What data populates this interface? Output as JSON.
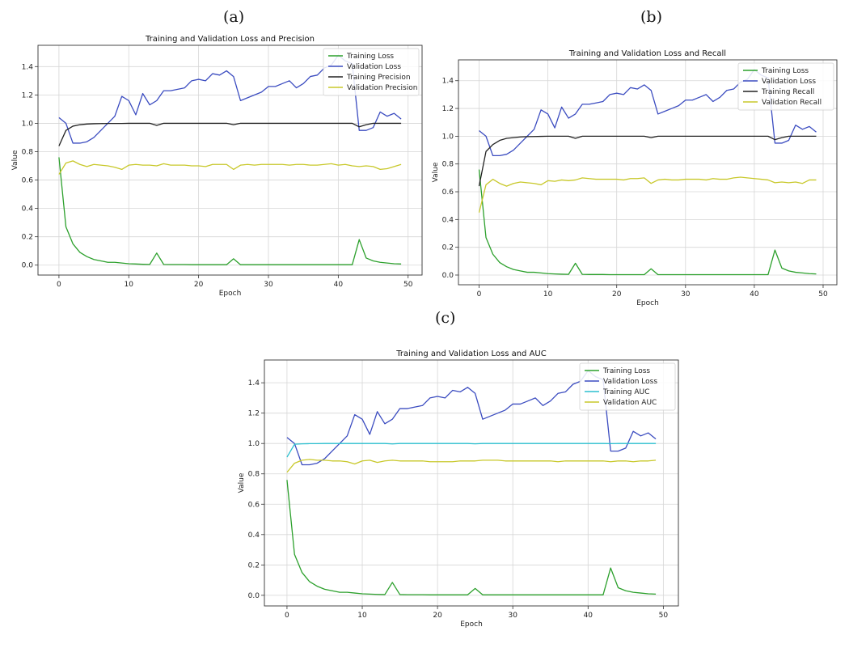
{
  "panels": [
    {
      "label": "(a)"
    },
    {
      "label": "(b)"
    },
    {
      "label": "(c)"
    }
  ],
  "chart_data": [
    {
      "type": "line",
      "title": "Training and Validation Loss and Precision",
      "xlabel": "Epoch",
      "ylabel": "Value",
      "xlim": [
        -3,
        52
      ],
      "ylim": [
        -0.07,
        1.55
      ],
      "xticks": [
        0,
        10,
        20,
        30,
        40,
        50
      ],
      "yticks": [
        0.0,
        0.2,
        0.4,
        0.6,
        0.8,
        1.0,
        1.2,
        1.4
      ],
      "grid": true,
      "legend": "top-right",
      "series": [
        {
          "name": "Training Loss",
          "color": "#2ca02c",
          "values": [
            0.76,
            0.27,
            0.15,
            0.09,
            0.06,
            0.04,
            0.03,
            0.02,
            0.02,
            0.015,
            0.01,
            0.008,
            0.006,
            0.005,
            0.085,
            0.005,
            0.004,
            0.004,
            0.004,
            0.003,
            0.003,
            0.003,
            0.003,
            0.003,
            0.003,
            0.045,
            0.003,
            0.003,
            0.003,
            0.003,
            0.003,
            0.003,
            0.003,
            0.003,
            0.003,
            0.003,
            0.003,
            0.003,
            0.003,
            0.003,
            0.003,
            0.003,
            0.003,
            0.18,
            0.05,
            0.03,
            0.02,
            0.015,
            0.01,
            0.008
          ]
        },
        {
          "name": "Validation Loss",
          "color": "#3b4cc0",
          "values": [
            1.04,
            1.0,
            0.86,
            0.86,
            0.87,
            0.9,
            0.95,
            1.0,
            1.05,
            1.19,
            1.16,
            1.06,
            1.21,
            1.13,
            1.16,
            1.23,
            1.23,
            1.24,
            1.25,
            1.3,
            1.31,
            1.3,
            1.35,
            1.34,
            1.37,
            1.33,
            1.16,
            1.18,
            1.2,
            1.22,
            1.26,
            1.26,
            1.28,
            1.3,
            1.25,
            1.28,
            1.33,
            1.34,
            1.39,
            1.41,
            1.48,
            1.44,
            1.42,
            0.95,
            0.95,
            0.97,
            1.08,
            1.05,
            1.07,
            1.03
          ]
        },
        {
          "name": "Training Precision",
          "color": "#222222",
          "values": [
            0.84,
            0.95,
            0.98,
            0.99,
            0.995,
            0.997,
            0.998,
            0.999,
            0.999,
            0.999,
            1.0,
            1.0,
            1.0,
            1.0,
            0.985,
            1.0,
            1.0,
            1.0,
            1.0,
            1.0,
            1.0,
            1.0,
            1.0,
            1.0,
            1.0,
            0.99,
            1.0,
            1.0,
            1.0,
            1.0,
            1.0,
            1.0,
            1.0,
            1.0,
            1.0,
            1.0,
            1.0,
            1.0,
            1.0,
            1.0,
            1.0,
            1.0,
            1.0,
            0.975,
            0.99,
            1.0,
            1.0,
            1.0,
            1.0,
            1.0
          ]
        },
        {
          "name": "Validation Precision",
          "color": "#c8c82a",
          "values": [
            0.64,
            0.72,
            0.735,
            0.71,
            0.695,
            0.71,
            0.705,
            0.7,
            0.69,
            0.675,
            0.705,
            0.71,
            0.705,
            0.705,
            0.7,
            0.715,
            0.705,
            0.705,
            0.705,
            0.7,
            0.7,
            0.695,
            0.71,
            0.71,
            0.71,
            0.675,
            0.705,
            0.71,
            0.705,
            0.71,
            0.71,
            0.71,
            0.71,
            0.705,
            0.71,
            0.71,
            0.705,
            0.705,
            0.71,
            0.715,
            0.705,
            0.71,
            0.7,
            0.695,
            0.7,
            0.695,
            0.675,
            0.68,
            0.695,
            0.71
          ]
        }
      ]
    },
    {
      "type": "line",
      "title": "Training and Validation Loss and Recall",
      "xlabel": "Epoch",
      "ylabel": "Value",
      "xlim": [
        -3,
        52
      ],
      "ylim": [
        -0.07,
        1.55
      ],
      "xticks": [
        0,
        10,
        20,
        30,
        40,
        50
      ],
      "yticks": [
        0.0,
        0.2,
        0.4,
        0.6,
        0.8,
        1.0,
        1.2,
        1.4
      ],
      "grid": true,
      "legend": "top-right",
      "series": [
        {
          "name": "Training Loss",
          "color": "#2ca02c",
          "values": [
            0.76,
            0.27,
            0.15,
            0.09,
            0.06,
            0.04,
            0.03,
            0.02,
            0.02,
            0.015,
            0.01,
            0.008,
            0.006,
            0.005,
            0.085,
            0.005,
            0.004,
            0.004,
            0.004,
            0.003,
            0.003,
            0.003,
            0.003,
            0.003,
            0.003,
            0.045,
            0.003,
            0.003,
            0.003,
            0.003,
            0.003,
            0.003,
            0.003,
            0.003,
            0.003,
            0.003,
            0.003,
            0.003,
            0.003,
            0.003,
            0.003,
            0.003,
            0.003,
            0.18,
            0.05,
            0.03,
            0.02,
            0.015,
            0.01,
            0.008
          ]
        },
        {
          "name": "Validation Loss",
          "color": "#3b4cc0",
          "values": [
            1.04,
            1.0,
            0.86,
            0.86,
            0.87,
            0.9,
            0.95,
            1.0,
            1.05,
            1.19,
            1.16,
            1.06,
            1.21,
            1.13,
            1.16,
            1.23,
            1.23,
            1.24,
            1.25,
            1.3,
            1.31,
            1.3,
            1.35,
            1.34,
            1.37,
            1.33,
            1.16,
            1.18,
            1.2,
            1.22,
            1.26,
            1.26,
            1.28,
            1.3,
            1.25,
            1.28,
            1.33,
            1.34,
            1.39,
            1.41,
            1.48,
            1.44,
            1.42,
            0.95,
            0.95,
            0.97,
            1.08,
            1.05,
            1.07,
            1.03
          ]
        },
        {
          "name": "Training Recall",
          "color": "#222222",
          "values": [
            0.64,
            0.89,
            0.94,
            0.97,
            0.985,
            0.99,
            0.995,
            0.997,
            0.998,
            0.999,
            1.0,
            1.0,
            1.0,
            1.0,
            0.985,
            1.0,
            1.0,
            1.0,
            1.0,
            1.0,
            1.0,
            1.0,
            1.0,
            1.0,
            1.0,
            0.99,
            1.0,
            1.0,
            1.0,
            1.0,
            1.0,
            1.0,
            1.0,
            1.0,
            1.0,
            1.0,
            1.0,
            1.0,
            1.0,
            1.0,
            1.0,
            1.0,
            1.0,
            0.975,
            0.99,
            1.0,
            1.0,
            1.0,
            1.0,
            1.0
          ]
        },
        {
          "name": "Validation Recall",
          "color": "#c8c82a",
          "values": [
            0.45,
            0.65,
            0.69,
            0.66,
            0.64,
            0.66,
            0.67,
            0.665,
            0.66,
            0.65,
            0.68,
            0.675,
            0.685,
            0.68,
            0.685,
            0.7,
            0.695,
            0.69,
            0.69,
            0.69,
            0.69,
            0.685,
            0.695,
            0.695,
            0.7,
            0.66,
            0.685,
            0.69,
            0.685,
            0.685,
            0.69,
            0.69,
            0.69,
            0.685,
            0.695,
            0.69,
            0.69,
            0.7,
            0.705,
            0.7,
            0.695,
            0.69,
            0.685,
            0.665,
            0.67,
            0.665,
            0.67,
            0.66,
            0.685,
            0.685
          ]
        }
      ]
    },
    {
      "type": "line",
      "title": "Training and Validation Loss and AUC",
      "xlabel": "Epoch",
      "ylabel": "Value",
      "xlim": [
        -3,
        52
      ],
      "ylim": [
        -0.07,
        1.55
      ],
      "xticks": [
        0,
        10,
        20,
        30,
        40,
        50
      ],
      "yticks": [
        0.0,
        0.2,
        0.4,
        0.6,
        0.8,
        1.0,
        1.2,
        1.4
      ],
      "grid": true,
      "legend": "top-right",
      "series": [
        {
          "name": "Training Loss",
          "color": "#2ca02c",
          "values": [
            0.76,
            0.27,
            0.15,
            0.09,
            0.06,
            0.04,
            0.03,
            0.02,
            0.02,
            0.015,
            0.01,
            0.008,
            0.006,
            0.005,
            0.085,
            0.005,
            0.004,
            0.004,
            0.004,
            0.003,
            0.003,
            0.003,
            0.003,
            0.003,
            0.003,
            0.045,
            0.003,
            0.003,
            0.003,
            0.003,
            0.003,
            0.003,
            0.003,
            0.003,
            0.003,
            0.003,
            0.003,
            0.003,
            0.003,
            0.003,
            0.003,
            0.003,
            0.003,
            0.18,
            0.05,
            0.03,
            0.02,
            0.015,
            0.01,
            0.008
          ]
        },
        {
          "name": "Validation Loss",
          "color": "#3b4cc0",
          "values": [
            1.04,
            1.0,
            0.86,
            0.86,
            0.87,
            0.9,
            0.95,
            1.0,
            1.05,
            1.19,
            1.16,
            1.06,
            1.21,
            1.13,
            1.16,
            1.23,
            1.23,
            1.24,
            1.25,
            1.3,
            1.31,
            1.3,
            1.35,
            1.34,
            1.37,
            1.33,
            1.16,
            1.18,
            1.2,
            1.22,
            1.26,
            1.26,
            1.28,
            1.3,
            1.25,
            1.28,
            1.33,
            1.34,
            1.39,
            1.41,
            1.48,
            1.44,
            1.42,
            0.95,
            0.95,
            0.97,
            1.08,
            1.05,
            1.07,
            1.03
          ]
        },
        {
          "name": "Training AUC",
          "color": "#2bbfcf",
          "values": [
            0.91,
            0.995,
            0.998,
            0.999,
            0.999,
            1.0,
            1.0,
            1.0,
            1.0,
            1.0,
            1.0,
            1.0,
            1.0,
            1.0,
            0.997,
            1.0,
            1.0,
            1.0,
            1.0,
            1.0,
            1.0,
            1.0,
            1.0,
            1.0,
            1.0,
            0.998,
            1.0,
            1.0,
            1.0,
            1.0,
            1.0,
            1.0,
            1.0,
            1.0,
            1.0,
            1.0,
            1.0,
            1.0,
            1.0,
            1.0,
            1.0,
            1.0,
            1.0,
            0.999,
            1.0,
            1.0,
            1.0,
            1.0,
            1.0,
            1.0
          ]
        },
        {
          "name": "Validation AUC",
          "color": "#c8c82a",
          "values": [
            0.81,
            0.87,
            0.89,
            0.895,
            0.89,
            0.89,
            0.885,
            0.885,
            0.88,
            0.865,
            0.885,
            0.89,
            0.875,
            0.885,
            0.89,
            0.885,
            0.885,
            0.885,
            0.885,
            0.88,
            0.88,
            0.88,
            0.88,
            0.885,
            0.885,
            0.885,
            0.89,
            0.89,
            0.89,
            0.885,
            0.885,
            0.885,
            0.885,
            0.885,
            0.885,
            0.885,
            0.88,
            0.885,
            0.885,
            0.885,
            0.885,
            0.885,
            0.885,
            0.88,
            0.885,
            0.885,
            0.88,
            0.885,
            0.885,
            0.89
          ]
        }
      ]
    }
  ]
}
